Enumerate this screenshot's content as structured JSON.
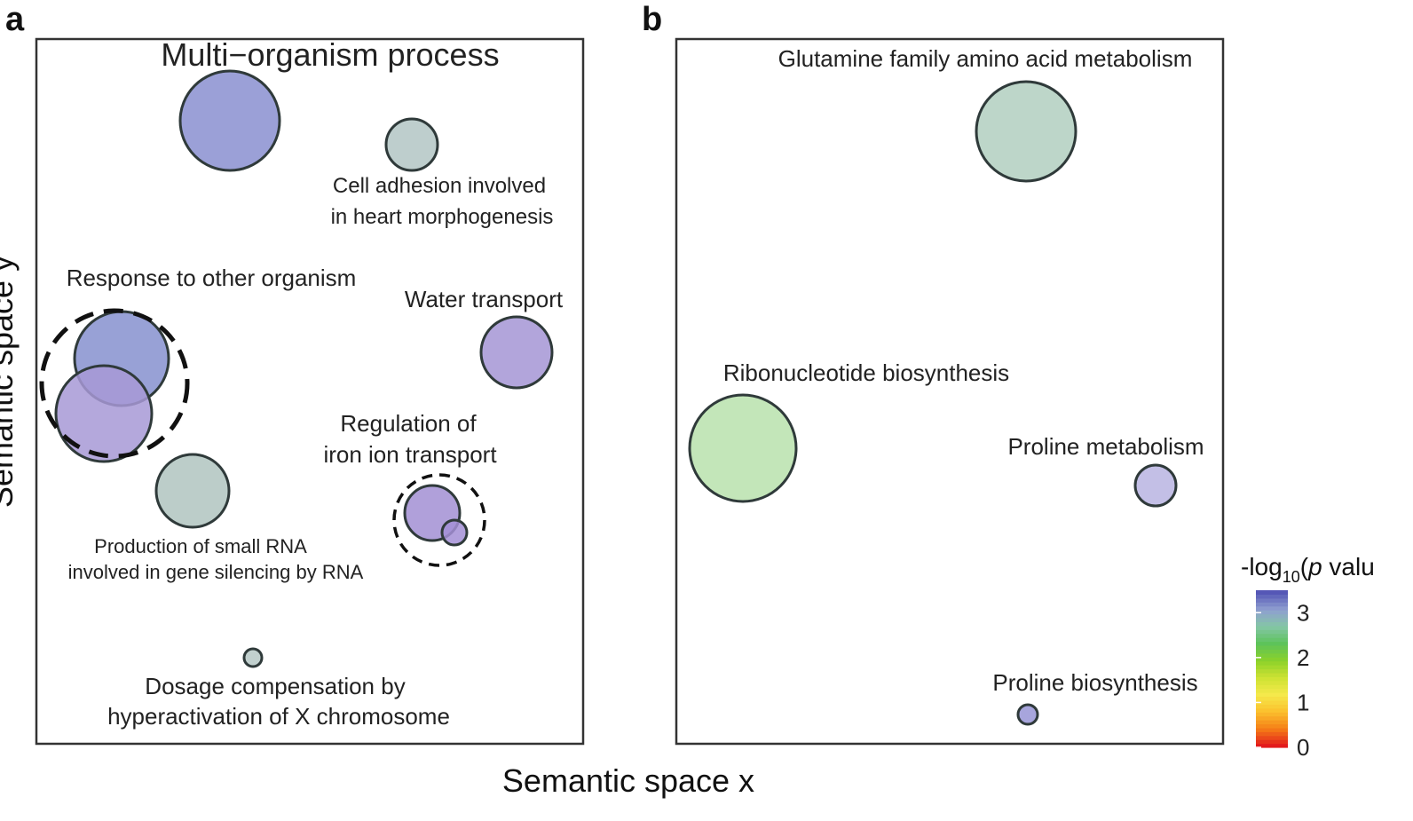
{
  "chart_data": {
    "type": "scatter",
    "xlabel": "Semantic space x",
    "ylabel": "Semantic space y",
    "colorbar": {
      "title_prefix": "-log",
      "title_sub": "10",
      "title_paren": "(",
      "title_italic": "p",
      "title_suffix": " valu",
      "ticks": [
        "3",
        "2",
        "1",
        "0"
      ],
      "range": [
        0,
        3.5
      ],
      "colors": [
        "#e31a1c",
        "#f57f17",
        "#fbc02d",
        "#f5e94b",
        "#cde233",
        "#8bd12a",
        "#5dc35a",
        "#84c6a6",
        "#8f9fd0",
        "#5557b6"
      ]
    },
    "panels": [
      {
        "letter": "a",
        "points": [
          {
            "label_lines": [
              "Multi−organism process"
            ],
            "size": "large",
            "value": 3.3,
            "color": "#8a8fd0"
          },
          {
            "label_lines": [
              "Cell adhesion involved",
              "in heart morphogenesis"
            ],
            "size": "small",
            "value": 2.9,
            "color": "#b3c6c4"
          },
          {
            "label_lines": [
              "Response to other organism"
            ],
            "size": "large",
            "value": 3.3,
            "color": "#8691cf",
            "grouped": true
          },
          {
            "label_lines": [],
            "size": "large",
            "value": 3.2,
            "color": "#a799d6",
            "grouped": true
          },
          {
            "label_lines": [
              "Water transport"
            ],
            "size": "medium",
            "value": 3.2,
            "color": "#a595d5"
          },
          {
            "label_lines": [
              "Production of small RNA",
              "involved in gene silencing by RNA"
            ],
            "size": "medium",
            "value": 2.9,
            "color": "#b0c4c0"
          },
          {
            "label_lines": [
              "Regulation of",
              "iron ion transport"
            ],
            "size": "small",
            "value": 3.2,
            "color": "#a28fd4",
            "grouped": true
          },
          {
            "label_lines": [],
            "size": "tiny",
            "value": 3.2,
            "color": "#a38fd6",
            "grouped": true
          },
          {
            "label_lines": [
              "Dosage compensation by",
              "hyperactivation of X chromosome"
            ],
            "size": "tiny",
            "value": 2.9,
            "color": "#b6c8c5"
          }
        ]
      },
      {
        "letter": "b",
        "points": [
          {
            "label_lines": [
              "Glutamine family amino acid metabolism"
            ],
            "size": "large",
            "value": 2.9,
            "color": "#b2cfc0"
          },
          {
            "label_lines": [
              "Ribonucleotide biosynthesis"
            ],
            "size": "large",
            "value": 2.6,
            "color": "#b8e2ad"
          },
          {
            "label_lines": [
              "Proline metabolism"
            ],
            "size": "small",
            "value": 3.2,
            "color": "#b9b4e2"
          },
          {
            "label_lines": [
              "Proline biosynthesis"
            ],
            "size": "tiny",
            "value": 3.3,
            "color": "#9895d6"
          }
        ]
      }
    ]
  }
}
